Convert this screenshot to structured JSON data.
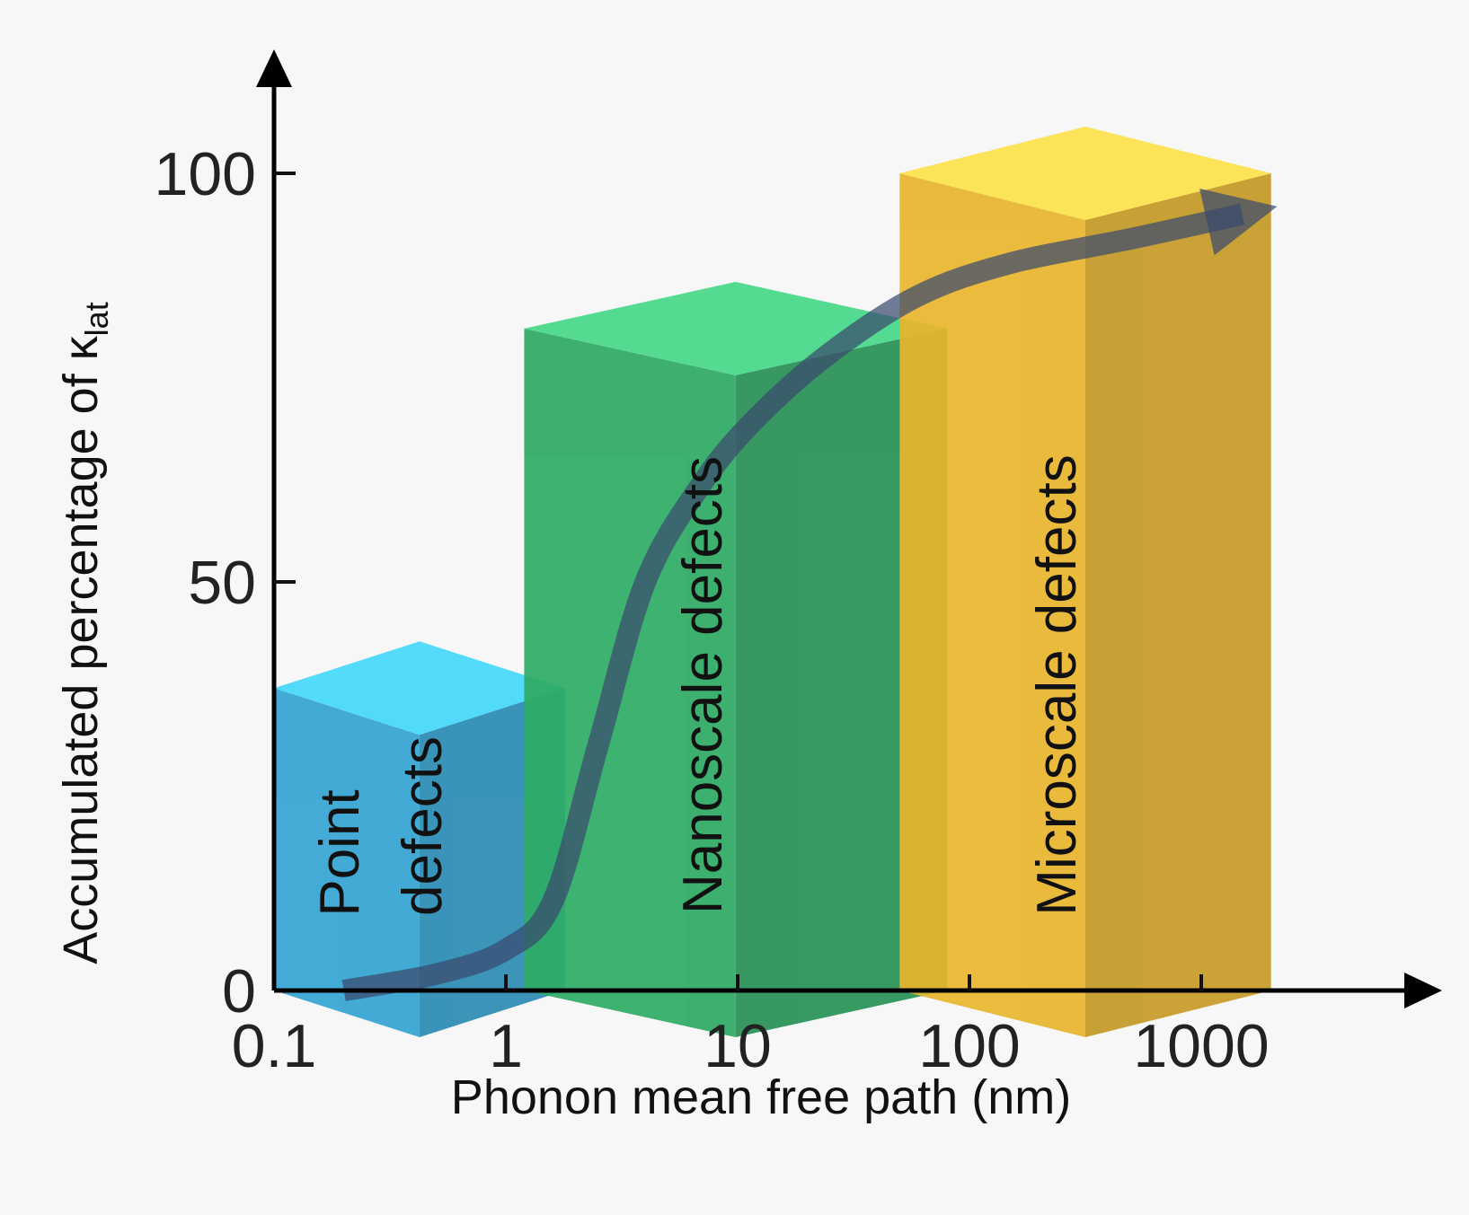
{
  "chart_data": {
    "type": "bar",
    "xlabel": "Phonon mean free path (nm)",
    "ylabel_main": "Accumulated percentage of κ",
    "ylabel_sub": "lat",
    "x_scale": "log",
    "xlim": [
      0.1,
      10000
    ],
    "ylim": [
      0,
      110
    ],
    "x_ticks": [
      0.1,
      1,
      10,
      100,
      1000
    ],
    "x_tick_labels": [
      "0.1",
      "1",
      "10",
      "100",
      "1000"
    ],
    "y_ticks": [
      0,
      50,
      100
    ],
    "y_tick_labels": [
      "0",
      "50",
      "100"
    ],
    "grid": false,
    "bars": [
      {
        "label_lines": [
          "Point",
          "defects"
        ],
        "x_start": 0.1,
        "x_end": 1.8,
        "value": 37,
        "color": "#33a4d2",
        "top_color": "#45d8fc"
      },
      {
        "label_lines": [
          "Nanoscale defects"
        ],
        "x_start": 1.2,
        "x_end": 80,
        "value": 81,
        "color": "#2eab65",
        "top_color": "#48d889"
      },
      {
        "label_lines": [
          "Microscale defects"
        ],
        "x_start": 50,
        "x_end": 2000,
        "value": 100,
        "color": "#e8b52d",
        "top_color": "#fde24a"
      }
    ],
    "trend_arrow": {
      "x": [
        0.2,
        0.5,
        1.0,
        1.6,
        2.5,
        4.0,
        7.0,
        12,
        25,
        60,
        150,
        500,
        1500
      ],
      "y": [
        0,
        2,
        5,
        11,
        30,
        50,
        62,
        70,
        78,
        85,
        89,
        92,
        95
      ],
      "color": "#3a4a6e"
    }
  }
}
